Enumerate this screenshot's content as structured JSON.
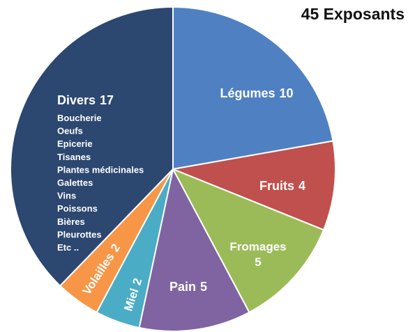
{
  "chart_data": {
    "type": "pie",
    "title": "45 Exposants",
    "categories": [
      "Légumes",
      "Fruits",
      "Fromages",
      "Pain",
      "Miel",
      "Volailles",
      "Divers"
    ],
    "values": [
      10,
      4,
      5,
      5,
      2,
      2,
      17
    ],
    "colors": [
      "#4f81c2",
      "#c0504d",
      "#9bbb59",
      "#8064a2",
      "#4bacc6",
      "#f79646",
      "#2c4770"
    ],
    "divers_items": [
      "Boucherie",
      "Oeufs",
      "Epicerie",
      "Tisanes",
      "Plantes médicinales",
      "Galettes",
      "Vins",
      "Poissons",
      "Bières",
      "Pleurottes",
      "Etc .."
    ]
  }
}
